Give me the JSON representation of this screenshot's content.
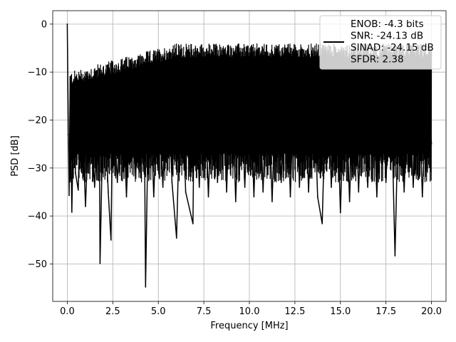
{
  "chart_data": {
    "type": "line",
    "xlabel": "Frequency [MHz]",
    "ylabel": "PSD [dB]",
    "xlim": [
      -0.8,
      20.8
    ],
    "ylim": [
      -57.8,
      2.8
    ],
    "xticks": [
      0.0,
      2.5,
      5.0,
      7.5,
      10.0,
      12.5,
      15.0,
      17.5,
      20.0
    ],
    "xtick_labels": [
      "0.0",
      "2.5",
      "5.0",
      "7.5",
      "10.0",
      "12.5",
      "15.0",
      "17.5",
      "20.0"
    ],
    "yticks": [
      0,
      -10,
      -20,
      -30,
      -40,
      -50
    ],
    "ytick_labels": [
      "0",
      "−10",
      "−20",
      "−30",
      "−40",
      "−50"
    ],
    "grid": true,
    "line_color": "#000000",
    "legend": {
      "placement": "top-right",
      "lines": [
        "ENOB: -4.3 bits",
        "SNR: -24.13 dB",
        "SINAD: -24.15 dB",
        "SFDR: 2.38"
      ]
    },
    "series": [
      {
        "x": [
          0.0,
          0.06,
          0.1,
          0.16,
          0.25,
          0.38,
          0.45,
          0.6,
          0.75,
          1.0,
          1.25,
          1.5,
          1.75,
          1.8,
          2.0,
          2.25,
          2.4,
          2.5,
          2.75,
          3.0,
          3.25,
          3.5,
          3.75,
          4.0,
          4.25,
          4.3,
          4.5,
          4.75,
          5.0,
          5.25,
          5.5,
          5.75,
          6.0,
          6.25,
          6.5,
          6.9,
          7.0,
          7.25,
          7.5,
          7.75,
          8.0,
          8.25,
          8.5,
          8.75,
          9.0,
          9.25,
          9.5,
          9.75,
          10.0,
          10.25,
          10.5,
          10.75,
          11.0,
          11.25,
          11.5,
          11.75,
          12.0,
          12.25,
          12.5,
          12.75,
          13.0,
          13.25,
          13.5,
          13.75,
          14.0,
          14.25,
          14.5,
          14.75,
          15.0,
          15.25,
          15.5,
          15.75,
          16.0,
          16.25,
          16.5,
          16.75,
          17.0,
          17.25,
          17.5,
          17.75,
          18.0,
          18.25,
          18.5,
          18.75,
          19.0,
          19.25,
          19.5,
          19.75,
          20.0
        ],
        "y": [
          0.0,
          -23.0,
          -35.7,
          -11.0,
          -39.2,
          -12.0,
          -31.0,
          -34.6,
          -11.5,
          -38.0,
          -13.0,
          -34.0,
          -14.0,
          -49.9,
          -12.0,
          -35.0,
          -45.0,
          -13.0,
          -33.0,
          -11.0,
          -36.0,
          -9.0,
          -32.0,
          -10.0,
          -30.0,
          -54.8,
          -8.0,
          -36.0,
          -8.0,
          -34.0,
          -7.0,
          -33.0,
          -44.6,
          -7.0,
          -35.0,
          -41.6,
          -6.0,
          -34.0,
          -7.0,
          -36.0,
          -6.0,
          -33.0,
          -7.0,
          -35.0,
          -5.0,
          -37.0,
          -6.0,
          -34.0,
          -7.0,
          -36.0,
          -5.0,
          -35.0,
          -6.0,
          -37.0,
          -7.0,
          -33.0,
          -5.0,
          -36.0,
          -6.0,
          -34.0,
          -6.0,
          -35.0,
          -7.0,
          -36.0,
          -41.6,
          -6.0,
          -34.0,
          -8.0,
          -39.3,
          -7.0,
          -37.0,
          -5.0,
          -35.0,
          -6.0,
          -34.0,
          -7.0,
          -36.0,
          -6.0,
          -33.0,
          -9.0,
          -48.3,
          -7.0,
          -35.0,
          -8.0,
          -34.0,
          -7.0,
          -36.0,
          -9.0,
          -25.0
        ]
      }
    ]
  }
}
